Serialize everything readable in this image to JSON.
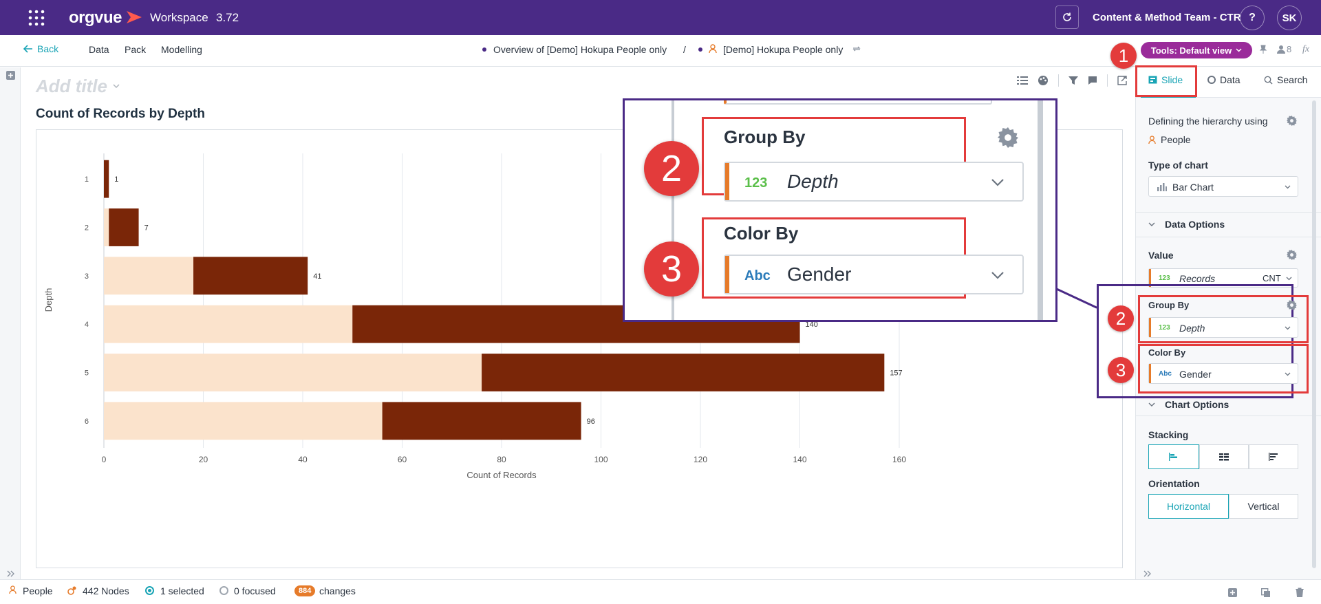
{
  "topbar": {
    "brand": "orgvue",
    "workspace": "Workspace",
    "version": "3.72",
    "team": "Content & Method Team - CTR",
    "help": "?",
    "user_initials": "SK"
  },
  "nav": {
    "back": "Back",
    "items": [
      "Data",
      "Pack",
      "Modelling"
    ],
    "crumb_view": "Overview of [Demo] Hokupa People only",
    "crumb_sep": "/",
    "crumb_dataset": "[Demo] Hokupa People only",
    "tools": "Tools: Default view",
    "users_count": "8",
    "fx": "fx"
  },
  "canvas": {
    "title_placeholder": "Add title"
  },
  "right_panel": {
    "tabs": [
      "Slide",
      "Data",
      "Search"
    ],
    "hierarchy_label": "Defining the hierarchy using",
    "hierarchy_value": "People",
    "chart_type_label": "Type of chart",
    "chart_type_value": "Bar Chart",
    "data_options": "Data Options",
    "value_label": "Value",
    "value_type": "123",
    "value_field": "Records",
    "value_agg": "CNT",
    "group_by_label": "Group By",
    "group_by_type": "123",
    "group_by_value": "Depth",
    "color_by_label": "Color By",
    "color_by_type": "Abc",
    "color_by_value": "Gender",
    "chart_options": "Chart Options",
    "stacking_label": "Stacking",
    "orientation_label": "Orientation",
    "orientation_options": [
      "Horizontal",
      "Vertical"
    ]
  },
  "zoom": {
    "group_by_label": "Group By",
    "group_by_type": "123",
    "group_by_value": "Depth",
    "color_by_label": "Color By",
    "color_by_type": "Abc",
    "color_by_value": "Gender"
  },
  "annotations": {
    "badge1": "1",
    "badge2": "2",
    "badge3": "3"
  },
  "status": {
    "people": "People",
    "nodes": "442 Nodes",
    "selected": "1 selected",
    "focused": "0 focused",
    "changes_count": "884",
    "changes": "changes"
  },
  "colors": {
    "brand_purple": "#4a2a86",
    "teal": "#19a4b5",
    "orange": "#e67b2a",
    "bar_dark": "#7a2608",
    "bar_light": "#fbe3cc",
    "annotation_red": "#e33b3b",
    "pill": "#9a2b9a"
  },
  "chart_data": {
    "type": "bar",
    "orientation": "horizontal",
    "stacked": true,
    "title": "Count of Records by Depth",
    "xlabel": "Count of Records",
    "ylabel": "Depth",
    "xlim": [
      0,
      160
    ],
    "xticks": [
      0,
      20,
      40,
      60,
      80,
      100,
      120,
      140,
      160
    ],
    "grid": true,
    "categories": [
      "1",
      "2",
      "3",
      "4",
      "5",
      "6"
    ],
    "series": [
      {
        "values": [
          0,
          1,
          18,
          50,
          76,
          56
        ],
        "color": "#fbe3cc"
      },
      {
        "values": [
          1,
          6,
          23,
          90,
          81,
          40
        ],
        "color": "#7a2608"
      }
    ],
    "totals": [
      1,
      7,
      41,
      140,
      157,
      96
    ]
  }
}
